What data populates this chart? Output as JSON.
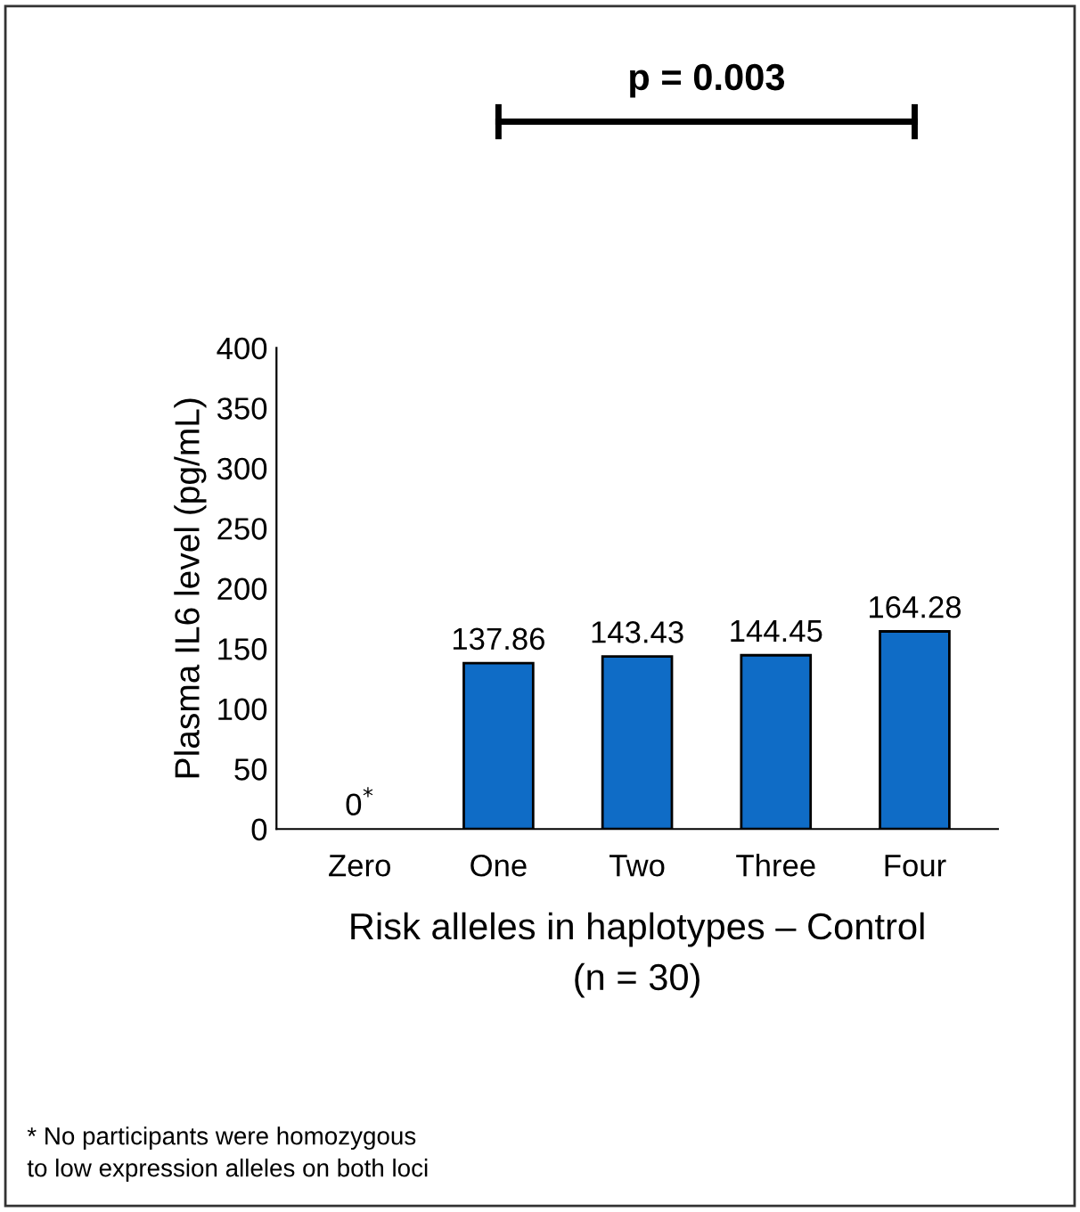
{
  "chart_data": {
    "type": "bar",
    "ylabel": "Plasma IL6 level (pg/mL)",
    "xlabel": "Risk alleles in haplotypes – Control\n(n = 30)",
    "categories": [
      "Zero",
      "One",
      "Two",
      "Three",
      "Four"
    ],
    "values": [
      0,
      137.86,
      143.43,
      144.45,
      164.28
    ],
    "value_labels": [
      "0$^{*}$",
      "137.86",
      "143.43",
      "144.45",
      "164.28"
    ],
    "color": "#0f6cc6",
    "ylim": [
      0,
      400
    ],
    "yticks": [
      0,
      50,
      100,
      150,
      200,
      250,
      300,
      350,
      400
    ],
    "grid": false,
    "legend": false,
    "annotations": [
      "p = 0.003",
      "* No participants were homozygous\nto low expression alleles on both loci"
    ]
  }
}
